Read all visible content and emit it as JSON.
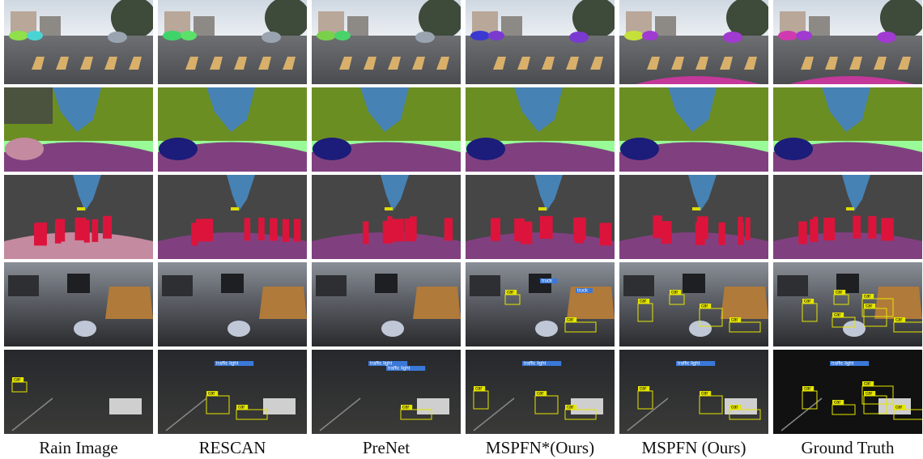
{
  "columns": [
    "Rain Image",
    "RESCAN",
    "PreNet",
    "MSPFN*(Ours)",
    "MSPFN (Ours)",
    "Ground Truth"
  ],
  "rows": [
    {
      "kind": "instance",
      "cells": [
        [],
        [],
        [],
        [],
        [],
        []
      ]
    },
    {
      "kind": "segmentation",
      "cells": [
        [],
        [],
        [],
        [],
        [],
        []
      ]
    },
    {
      "kind": "segmentation-people",
      "cells": [
        [],
        [],
        [],
        [],
        [],
        []
      ]
    },
    {
      "kind": "detection-day",
      "cells": [
        [],
        [],
        [],
        [
          "car",
          "truck",
          "car",
          "truck"
        ],
        [
          "car",
          "car",
          "car",
          "car"
        ],
        [
          "car",
          "car",
          "car",
          "car",
          "car",
          "car"
        ]
      ]
    },
    {
      "kind": "detection-night",
      "cells": [
        [
          "car"
        ],
        [
          "traffic light",
          "car",
          "car"
        ],
        [
          "traffic light",
          "traffic light",
          "car"
        ],
        [
          "traffic light",
          "car",
          "car",
          "car"
        ],
        [
          "traffic light",
          "car",
          "car",
          "car"
        ],
        [
          "traffic light",
          "car",
          "car",
          "car",
          "car",
          "car"
        ]
      ]
    }
  ]
}
